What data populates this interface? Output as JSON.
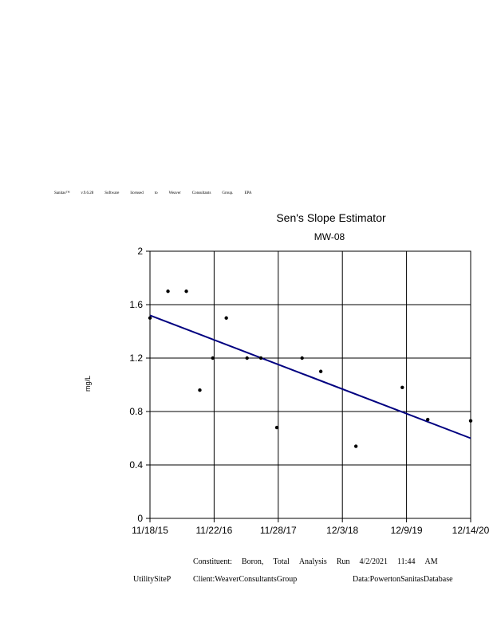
{
  "license_words": [
    "Sanitas™",
    "v.9.6.28",
    "Software",
    "licensed",
    "to",
    "Weaver",
    "Consultants",
    "Group.",
    "EPA"
  ],
  "chart_data": {
    "type": "scatter",
    "title": "Sen's Slope Estimator",
    "subtitle": "MW-08",
    "ylabel": "mg/L",
    "ylim": [
      0,
      2
    ],
    "yticks": [
      "0",
      "0.4",
      "0.8",
      "1.2",
      "1.6",
      "2"
    ],
    "xticks": [
      "11/18/15",
      "11/22/16",
      "11/28/17",
      "12/3/18",
      "12/9/19",
      "12/14/20"
    ],
    "grid": true,
    "points": [
      {
        "x": "2015-11-18",
        "y": 1.5
      },
      {
        "x": "2016-03-01",
        "y": 1.7
      },
      {
        "x": "2016-06-15",
        "y": 1.7
      },
      {
        "x": "2016-09-01",
        "y": 0.96
      },
      {
        "x": "2016-11-15",
        "y": 1.2
      },
      {
        "x": "2017-02-01",
        "y": 1.5
      },
      {
        "x": "2017-06-01",
        "y": 1.2
      },
      {
        "x": "2017-08-20",
        "y": 1.2
      },
      {
        "x": "2017-11-20",
        "y": 0.68
      },
      {
        "x": "2018-04-15",
        "y": 1.2
      },
      {
        "x": "2018-08-01",
        "y": 1.1
      },
      {
        "x": "2019-02-20",
        "y": 0.54
      },
      {
        "x": "2019-11-15",
        "y": 0.98
      },
      {
        "x": "2020-04-10",
        "y": 0.74
      },
      {
        "x": "2020-12-14",
        "y": 0.73
      }
    ],
    "trend_line": {
      "start": {
        "x": "2015-11-18",
        "y": 1.52
      },
      "end": {
        "x": "2020-12-14",
        "y": 0.6
      },
      "color": "#000080"
    },
    "point_color": "#000000"
  },
  "footer": {
    "line1": [
      "Constituent:",
      "Boron,",
      "Total",
      "Analysis",
      "Run",
      "4/2/2021",
      "11:44",
      "AM"
    ],
    "site": "UtilitySiteP",
    "client": "Client:WeaverConsultantsGroup",
    "data": "Data:PowertonSanitasDatabase"
  }
}
